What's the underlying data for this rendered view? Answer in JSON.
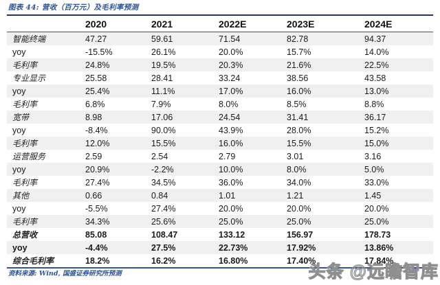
{
  "title": "图表 44: 营收（百万元）及毛利率预测",
  "footer": {
    "source": "资料来源: Wind, 国盛证券研究所预测"
  },
  "watermark": "头条 @远瞻智库",
  "colors": {
    "title_blue": "#2a5599",
    "table_top_border": "#1f3864",
    "table_bottom_border": "#2f5597",
    "stripe_gray": "#f0f0f0",
    "watermark_gray": "#8f8f8f"
  },
  "chart_data": {
    "type": "table",
    "title": "营收（百万元）及毛利率预测",
    "columns": [
      "2020",
      "2021",
      "2022E",
      "2023E",
      "2024E"
    ],
    "rows": [
      {
        "label": "智能终端",
        "bold": false,
        "values": [
          "47.27",
          "59.61",
          "71.54",
          "82.78",
          "94.37"
        ]
      },
      {
        "label": "yoy",
        "bold": false,
        "values": [
          "-15.5%",
          "26.1%",
          "20.0%",
          "15.7%",
          "14.0%"
        ]
      },
      {
        "label": "毛利率",
        "bold": false,
        "values": [
          "24.8%",
          "19.5%",
          "20.3%",
          "21.6%",
          "22.5%"
        ]
      },
      {
        "label": "专业显示",
        "bold": false,
        "values": [
          "25.58",
          "28.41",
          "33.24",
          "38.56",
          "43.58"
        ]
      },
      {
        "label": "yoy",
        "bold": false,
        "values": [
          "25.4%",
          "11.1%",
          "17.0%",
          "16.0%",
          "13.0%"
        ]
      },
      {
        "label": "毛利率",
        "bold": false,
        "values": [
          "6.8%",
          "7.9%",
          "8.0%",
          "8.5%",
          "8.8%"
        ]
      },
      {
        "label": "宽带",
        "bold": false,
        "values": [
          "8.98",
          "17.06",
          "24.54",
          "31.41",
          "36.17"
        ]
      },
      {
        "label": "yoy",
        "bold": false,
        "values": [
          "-8.4%",
          "90.0%",
          "43.9%",
          "28.0%",
          "15.2%"
        ]
      },
      {
        "label": "毛利率",
        "bold": false,
        "values": [
          "12.0%",
          "15.5%",
          "16.0%",
          "15.5%",
          "15.0%"
        ]
      },
      {
        "label": "运营服务",
        "bold": false,
        "values": [
          "2.59",
          "2.54",
          "2.79",
          "3.01",
          "3.16"
        ]
      },
      {
        "label": "yoy",
        "bold": false,
        "values": [
          "20.9%",
          "-2.2%",
          "10.0%",
          "8.0%",
          "5.0%"
        ]
      },
      {
        "label": "毛利率",
        "bold": false,
        "values": [
          "27.4%",
          "34.5%",
          "36.0%",
          "34.0%",
          "33.0%"
        ]
      },
      {
        "label": "其他",
        "bold": false,
        "values": [
          "0.66",
          "0.84",
          "1.01",
          "1.21",
          "1.45"
        ]
      },
      {
        "label": "yoy",
        "bold": false,
        "values": [
          "-5.5%",
          "27.4%",
          "20.0%",
          "20.0%",
          "20.0%"
        ]
      },
      {
        "label": "毛利率",
        "bold": false,
        "values": [
          "34.3%",
          "25.6%",
          "25.0%",
          "25.0%",
          "25.0%"
        ]
      },
      {
        "label": "总营收",
        "bold": true,
        "values": [
          "85.08",
          "108.47",
          "133.12",
          "156.97",
          "178.73"
        ]
      },
      {
        "label": "yoy",
        "bold": true,
        "values": [
          "-4.4%",
          "27.5%",
          "22.73%",
          "17.92%",
          "13.86%"
        ]
      },
      {
        "label": "综合毛利率",
        "bold": true,
        "values": [
          "18.2%",
          "16.2%",
          "16.80%",
          "17.40%",
          "17.84%"
        ]
      }
    ]
  }
}
